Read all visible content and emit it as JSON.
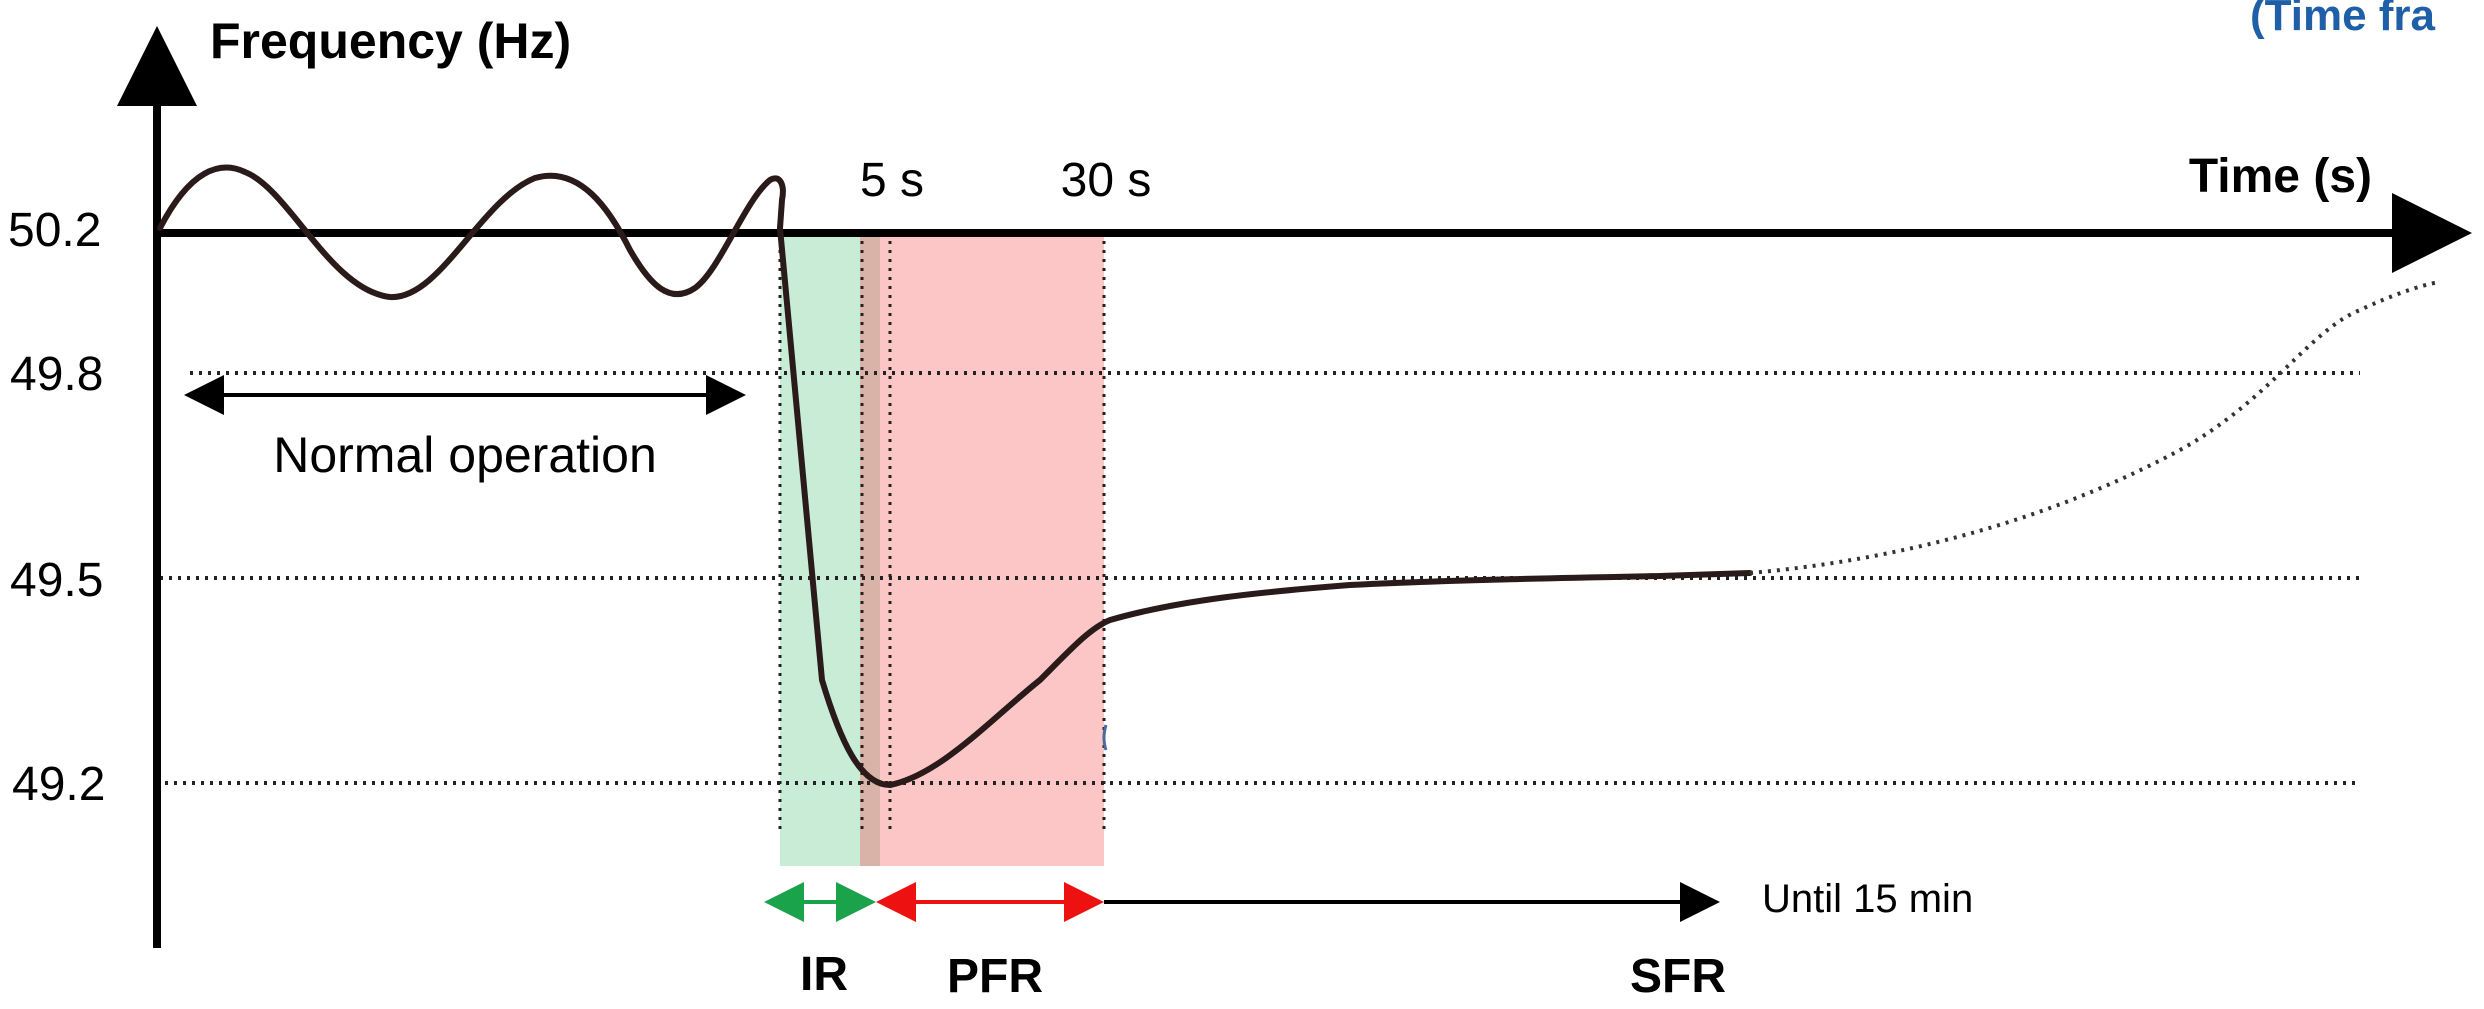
{
  "corner_title": "(Time fra",
  "y_axis_title": "Frequency (Hz)",
  "x_axis_title": "Time (s)",
  "y_ticks": [
    "50.2",
    "49.8",
    "49.5",
    "49.2"
  ],
  "time_markers": [
    "5 s",
    "30 s"
  ],
  "normal_operation_label": "Normal operation",
  "until_label": "Until 15 min",
  "phases": [
    {
      "label": "IR",
      "color": "#1aa34a",
      "fill": "#c8ecd6"
    },
    {
      "label": "PFR",
      "color": "#ee1111",
      "fill": "#fcc6c6"
    },
    {
      "label": "SFR",
      "color": "#000000"
    }
  ],
  "colors": {
    "axis": "#000000",
    "curve": "#2a1a1a",
    "title_blue": "#1f5fa8",
    "overlap_band": "#d9b2a8"
  }
}
